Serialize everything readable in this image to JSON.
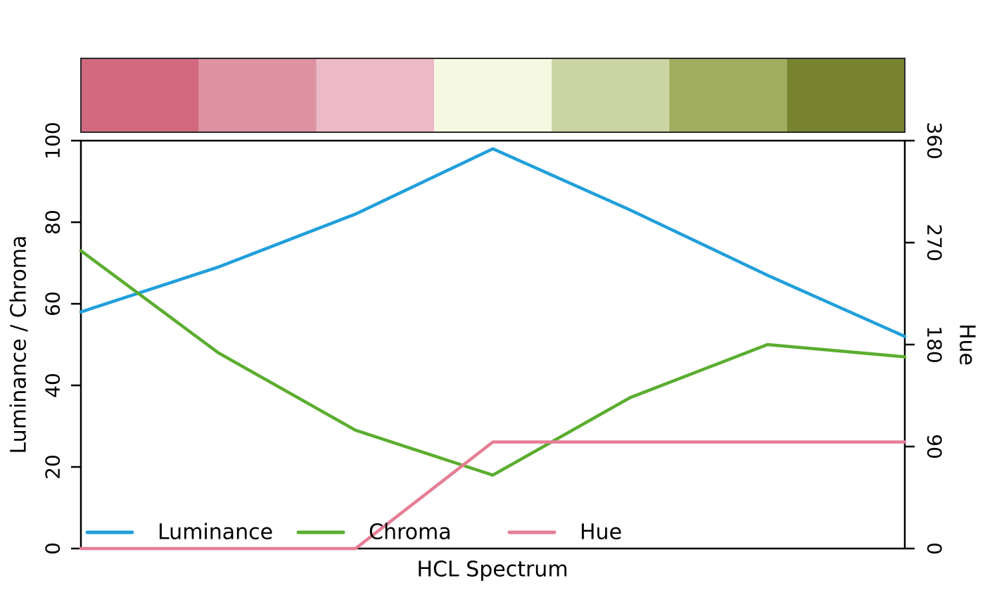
{
  "chart_data": {
    "type": "line",
    "title": "",
    "xlabel": "HCL Spectrum",
    "ylabel_left": "Luminance / Chroma",
    "ylabel_right": "Hue",
    "x": [
      1,
      2,
      3,
      4,
      5,
      6,
      7
    ],
    "series": [
      {
        "name": "Luminance",
        "axis": "left",
        "color": "#219FDB",
        "values": [
          58,
          69,
          82,
          98,
          83,
          67,
          52
        ]
      },
      {
        "name": "Chroma",
        "axis": "left",
        "color": "#5BAD2F",
        "values": [
          73,
          48,
          29,
          18,
          37,
          50,
          47
        ]
      },
      {
        "name": "Hue",
        "axis": "right",
        "color": "#E57E95",
        "values": [
          0,
          0,
          0,
          94,
          94,
          94,
          94
        ]
      }
    ],
    "yticks_left": [
      0,
      20,
      40,
      60,
      80,
      100
    ],
    "yticks_right": [
      0,
      90,
      180,
      270,
      360
    ],
    "ylim_left": [
      0,
      100
    ],
    "ylim_right": [
      0,
      360
    ],
    "grid": false,
    "legend_position": "bottom-inside",
    "palette": [
      "#D2697F",
      "#DD93A2",
      "#ECBAC6",
      "#F6F9E2",
      "#CBD4A3",
      "#A0AC60",
      "#788330"
    ],
    "palette_border_color": "#2b2b2b",
    "axis_color": "#000000"
  }
}
